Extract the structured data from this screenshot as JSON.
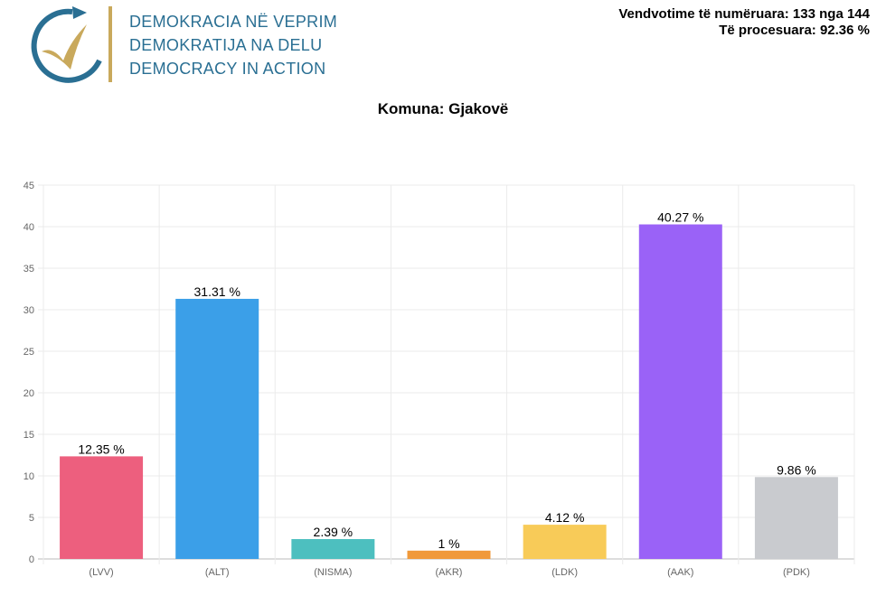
{
  "logo": {
    "lines": [
      "DEMOKRACIA NË VEPRIM",
      "DEMOKRATIJA NA DELU",
      "DEMOCRACY IN ACTION"
    ],
    "colors": {
      "blue": "#2a6f93",
      "gold": "#c9a95c"
    }
  },
  "stats": {
    "counted": "Vendvotime të numëruara: 133 nga 144",
    "processed": "Të procesuara: 92.36 %"
  },
  "chart_data": {
    "type": "bar",
    "title": "Komuna: Gjakovë",
    "categories": [
      "(LVV)",
      "(ALT)",
      "(NISMA)",
      "(AKR)",
      "(LDK)",
      "(AAK)",
      "(PDK)"
    ],
    "values": [
      12.35,
      31.31,
      2.39,
      1,
      4.12,
      40.27,
      9.86
    ],
    "labels": [
      "12.35 %",
      "31.31 %",
      "2.39 %",
      "1 %",
      "4.12 %",
      "40.27 %",
      "9.86 %"
    ],
    "colors": [
      "#ed5f7e",
      "#3b9fe8",
      "#4dbfbf",
      "#f0993a",
      "#f8cb58",
      "#9a62f7",
      "#c9cbcf"
    ],
    "ylim": [
      0,
      45
    ],
    "yticks": [
      0,
      5,
      10,
      15,
      20,
      25,
      30,
      35,
      40,
      45
    ],
    "grid": true,
    "legend": "none"
  }
}
